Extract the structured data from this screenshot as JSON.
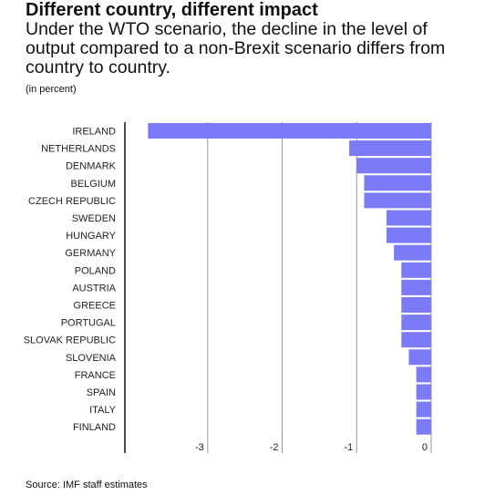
{
  "chart_data": {
    "type": "bar",
    "orientation": "horizontal",
    "title": "Different country, different impact",
    "subtitle": "Under the WTO scenario, the decline in the level of output compared to a non-Brexit scenario differs from country to country.",
    "unit_note": "(in percent)",
    "source": "Source: IMF staff estimates",
    "categories": [
      "IRELAND",
      "NETHERLANDS",
      "DENMARK",
      "BELGIUM",
      "CZECH REPUBLIC",
      "SWEDEN",
      "HUNGARY",
      "GERMANY",
      "POLAND",
      "AUSTRIA",
      "GREECE",
      "PORTUGAL",
      "SLOVAK REPUBLIC",
      "SLOVENIA",
      "FRANCE",
      "SPAIN",
      "ITALY",
      "FINLAND"
    ],
    "values": [
      -3.8,
      -1.1,
      -1.0,
      -0.9,
      -0.9,
      -0.6,
      -0.6,
      -0.5,
      -0.4,
      -0.4,
      -0.4,
      -0.4,
      -0.4,
      -0.3,
      -0.2,
      -0.2,
      -0.2,
      -0.2
    ],
    "xlim": [
      -4,
      0
    ],
    "xticks": [
      -3,
      -2,
      -1,
      0
    ],
    "xtick_labels": [
      "-3",
      "-2",
      "-1",
      "0"
    ],
    "grid": true,
    "bar_color": "#7b7bf7"
  }
}
